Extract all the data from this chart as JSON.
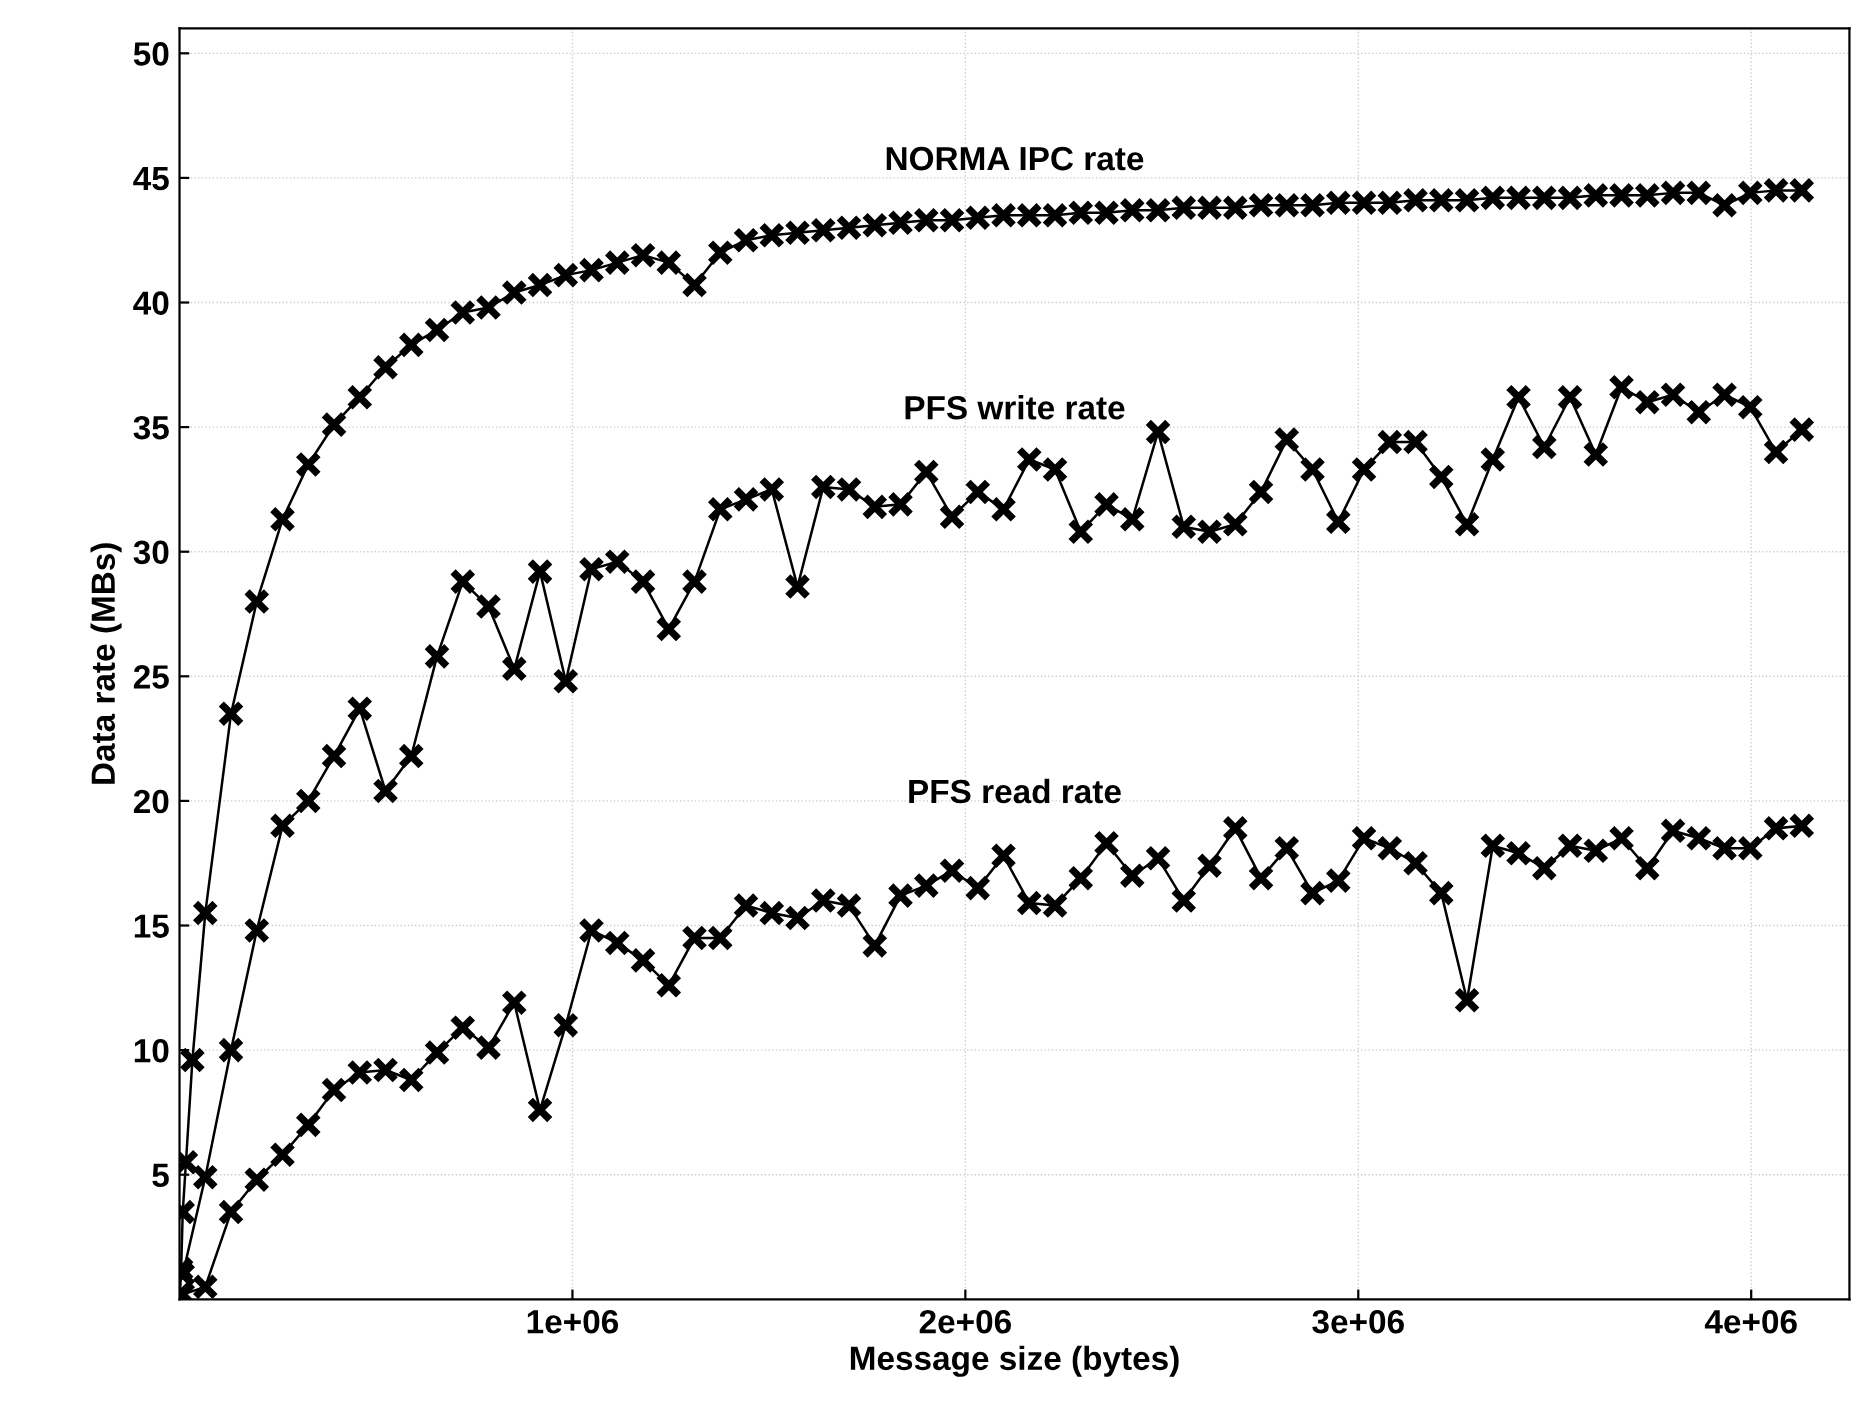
{
  "chart_data": {
    "type": "line",
    "xlabel": "Message size (bytes)",
    "ylabel": "Data rate (MBs)",
    "xlim": [
      0,
      4250000
    ],
    "xticks": [
      {
        "value": 1000000,
        "label": "1e+06"
      },
      {
        "value": 2000000,
        "label": "2e+06"
      },
      {
        "value": 3000000,
        "label": "3e+06"
      },
      {
        "value": 4000000,
        "label": "4e+06"
      }
    ],
    "ylim": [
      0,
      51
    ],
    "yticks": [
      5,
      10,
      15,
      20,
      25,
      30,
      35,
      40,
      45,
      50
    ],
    "grid": true,
    "marker": "cross",
    "line_style": "solid",
    "legend": false,
    "series": [
      {
        "name": "NORMA IPC rate",
        "color": "#000000",
        "x": [
          1024,
          4096,
          8192,
          16384,
          32768,
          65536,
          131072,
          196608,
          262144,
          327680,
          393216,
          458752,
          524288,
          589824,
          655360,
          720896,
          786432,
          851968,
          917504,
          983040,
          1048576,
          1114112,
          1179648,
          1245184,
          1310720,
          1376256,
          1441792,
          1507328,
          1572864,
          1638400,
          1703936,
          1769472,
          1835008,
          1900544,
          1966080,
          2031616,
          2097152,
          2162688,
          2228224,
          2293760,
          2359296,
          2424832,
          2490368,
          2555904,
          2621440,
          2686976,
          2752512,
          2818048,
          2883584,
          2949120,
          3014656,
          3080192,
          3145728,
          3211264,
          3276800,
          3342336,
          3407872,
          3473408,
          3538944,
          3604480,
          3670016,
          3735552,
          3801088,
          3866624,
          3932160,
          3997696,
          4063232,
          4128768
        ],
        "values": [
          0.2,
          1.2,
          3.5,
          5.5,
          9.6,
          15.5,
          23.5,
          28.0,
          31.3,
          33.5,
          35.1,
          36.2,
          37.4,
          38.3,
          38.9,
          39.6,
          39.8,
          40.4,
          40.7,
          41.1,
          41.3,
          41.6,
          41.9,
          41.6,
          40.7,
          42.0,
          42.5,
          42.7,
          42.8,
          42.9,
          43.0,
          43.1,
          43.2,
          43.3,
          43.3,
          43.4,
          43.5,
          43.5,
          43.5,
          43.6,
          43.6,
          43.7,
          43.7,
          43.8,
          43.8,
          43.8,
          43.9,
          43.9,
          43.9,
          44.0,
          44.0,
          44.0,
          44.1,
          44.1,
          44.1,
          44.2,
          44.2,
          44.2,
          44.2,
          44.3,
          44.3,
          44.3,
          44.4,
          44.4,
          43.9,
          44.4,
          44.5,
          44.5
        ]
      },
      {
        "name": "PFS write rate",
        "color": "#000000",
        "x": [
          8192,
          65536,
          131072,
          196608,
          262144,
          327680,
          393216,
          458752,
          524288,
          589824,
          655360,
          720896,
          786432,
          851968,
          917504,
          983040,
          1048576,
          1114112,
          1179648,
          1245184,
          1310720,
          1376256,
          1441792,
          1507328,
          1572864,
          1638400,
          1703936,
          1769472,
          1835008,
          1900544,
          1966080,
          2031616,
          2097152,
          2162688,
          2228224,
          2293760,
          2359296,
          2424832,
          2490368,
          2555904,
          2621440,
          2686976,
          2752512,
          2818048,
          2883584,
          2949120,
          3014656,
          3080192,
          3145728,
          3211264,
          3276800,
          3342336,
          3407872,
          3473408,
          3538944,
          3604480,
          3670016,
          3735552,
          3801088,
          3866624,
          3932160,
          3997696,
          4063232,
          4128768
        ],
        "values": [
          1.0,
          4.9,
          10.0,
          14.8,
          19.0,
          20.0,
          21.8,
          23.7,
          20.4,
          21.8,
          25.8,
          28.8,
          27.8,
          25.3,
          29.2,
          24.8,
          29.3,
          29.6,
          28.8,
          26.9,
          28.8,
          31.7,
          32.1,
          32.5,
          28.6,
          32.6,
          32.5,
          31.8,
          31.9,
          33.2,
          31.4,
          32.4,
          31.7,
          33.7,
          33.3,
          30.8,
          31.9,
          31.3,
          34.8,
          31.0,
          30.8,
          31.1,
          32.4,
          34.5,
          33.3,
          31.2,
          33.3,
          34.4,
          34.4,
          33.0,
          31.1,
          33.7,
          36.2,
          34.2,
          36.2,
          33.9,
          36.6,
          36.0,
          36.3,
          35.6,
          36.3,
          35.8,
          34.0,
          34.9
        ]
      },
      {
        "name": "PFS read rate",
        "color": "#000000",
        "x": [
          8192,
          65536,
          131072,
          196608,
          262144,
          327680,
          393216,
          458752,
          524288,
          589824,
          655360,
          720896,
          786432,
          851968,
          917504,
          983040,
          1048576,
          1114112,
          1179648,
          1245184,
          1310720,
          1376256,
          1441792,
          1507328,
          1572864,
          1638400,
          1703936,
          1769472,
          1835008,
          1900544,
          1966080,
          2031616,
          2097152,
          2162688,
          2228224,
          2293760,
          2359296,
          2424832,
          2490368,
          2555904,
          2621440,
          2686976,
          2752512,
          2818048,
          2883584,
          2949120,
          3014656,
          3080192,
          3145728,
          3211264,
          3276800,
          3342336,
          3407872,
          3473408,
          3538944,
          3604480,
          3670016,
          3735552,
          3801088,
          3866624,
          3932160,
          3997696,
          4063232,
          4128768
        ],
        "values": [
          0.2,
          0.5,
          3.5,
          4.8,
          5.8,
          7.0,
          8.4,
          9.1,
          9.2,
          8.8,
          9.9,
          10.9,
          10.1,
          11.9,
          7.6,
          11.0,
          14.8,
          14.3,
          13.6,
          12.6,
          14.5,
          14.5,
          15.8,
          15.5,
          15.3,
          16.0,
          15.8,
          14.2,
          16.2,
          16.6,
          17.2,
          16.5,
          17.8,
          15.9,
          15.8,
          16.9,
          18.3,
          17.0,
          17.7,
          16.0,
          17.4,
          18.9,
          16.9,
          18.1,
          16.3,
          16.8,
          18.5,
          18.1,
          17.5,
          16.3,
          12.0,
          18.2,
          17.9,
          17.3,
          18.2,
          18.0,
          18.5,
          17.3,
          18.8,
          18.5,
          18.1,
          18.1,
          18.9,
          19.0
        ]
      }
    ]
  }
}
